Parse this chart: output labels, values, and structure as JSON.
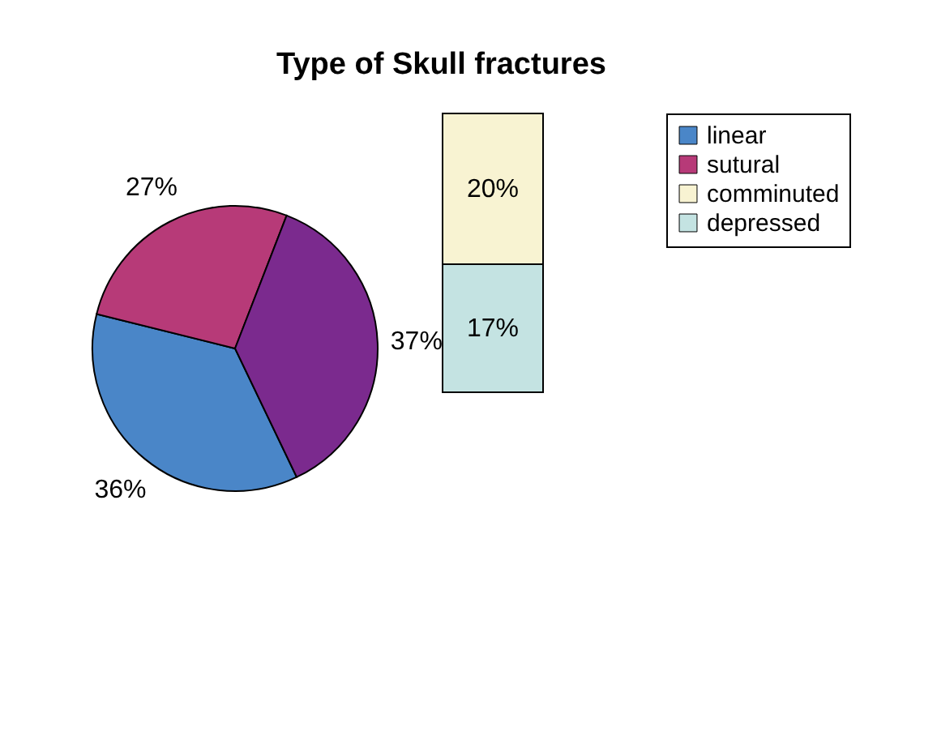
{
  "chart_data": [
    {
      "type": "pie",
      "title": "Type of Skull fractures",
      "categories": [
        null,
        "linear",
        "sutural"
      ],
      "values": [
        37,
        36,
        27
      ],
      "colors": [
        "#7b2a8e",
        "#4a86c8",
        "#b73a78"
      ],
      "value_labels": [
        "37%",
        "36%",
        "27%"
      ],
      "legend": "right"
    },
    {
      "type": "bar",
      "stacked": true,
      "categories": [
        null
      ],
      "series": [
        {
          "name": "depressed",
          "color": "#c4e3e2",
          "values": [
            17
          ],
          "value_labels": [
            "17%"
          ]
        },
        {
          "name": "comminuted",
          "color": "#f8f3d2",
          "values": [
            20
          ],
          "value_labels": [
            "20%"
          ]
        }
      ],
      "legend": "right"
    }
  ]
}
